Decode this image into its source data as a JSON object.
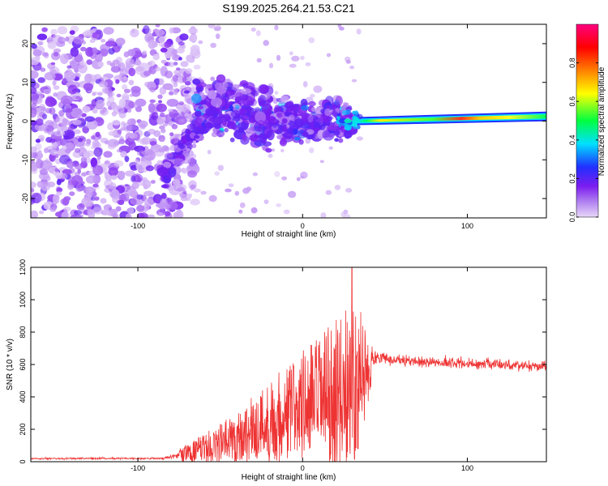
{
  "figure": {
    "title": "S199.2025.264.21.53.C21"
  },
  "chart_data": [
    {
      "type": "heatmap",
      "panel": "top",
      "title": "S199.2025.264.21.53.C21",
      "xlabel": "Height of straight line (km)",
      "ylabel": "Frequency (Hz)",
      "xlim": [
        -165,
        148
      ],
      "ylim": [
        -25,
        25
      ],
      "x_ticks": [
        -100,
        0,
        100
      ],
      "y_ticks": [
        20,
        10,
        0,
        -10,
        -20
      ],
      "colorbar": {
        "label": "Normalized spectral amplitude",
        "range": [
          0,
          1
        ],
        "ticks": [
          0.0,
          0.2,
          0.4,
          0.6,
          0.8
        ],
        "colormap": [
          "#e8d8f8",
          "#7c1cf0",
          "#2030ff",
          "#00e0ff",
          "#00ff40",
          "#ffff00",
          "#ff8000",
          "#ff0000",
          "#ff0080"
        ]
      },
      "features": [
        {
          "name": "noise_scatter",
          "x_range": [
            -165,
            -85
          ],
          "freq_range": [
            -25,
            24
          ],
          "amplitude": 0.1
        },
        {
          "name": "rising_diagonal",
          "x_from": -85,
          "freq_from": -15,
          "x_to": -55,
          "freq_to": 5,
          "amplitude": 0.12
        },
        {
          "name": "central_cluster",
          "x_range": [
            -65,
            30
          ],
          "freq_range": [
            -15,
            10
          ],
          "amplitude": 0.12
        },
        {
          "name": "constant_line",
          "x_range": [
            33,
            148
          ],
          "freq_start": 0,
          "freq_end": 1.2,
          "amplitude_peak": 0.9
        }
      ]
    },
    {
      "type": "line",
      "panel": "bottom",
      "xlabel": "Height of straight line (km)",
      "ylabel": "SNR (10 * v/v)",
      "xlim": [
        -165,
        148
      ],
      "ylim": [
        0,
        1200
      ],
      "x_ticks": [
        -100,
        0,
        100
      ],
      "y_ticks": [
        0,
        200,
        400,
        600,
        800,
        1000,
        1200
      ],
      "color": "#ee3333",
      "envelope": [
        {
          "x": -165,
          "mean": 20,
          "spread": 12
        },
        {
          "x": -85,
          "mean": 20,
          "spread": 12
        },
        {
          "x": -75,
          "mean": 40,
          "spread": 40
        },
        {
          "x": -60,
          "mean": 80,
          "spread": 90
        },
        {
          "x": -40,
          "mean": 150,
          "spread": 160
        },
        {
          "x": -20,
          "mean": 250,
          "spread": 260
        },
        {
          "x": 0,
          "mean": 350,
          "spread": 350
        },
        {
          "x": 20,
          "mean": 420,
          "spread": 450
        },
        {
          "x": 30,
          "mean": 480,
          "spread": 520
        },
        {
          "x": 40,
          "mean": 560,
          "spread": 300
        },
        {
          "x": 45,
          "mean": 640,
          "spread": 100
        },
        {
          "x": 60,
          "mean": 620,
          "spread": 70
        },
        {
          "x": 148,
          "mean": 590,
          "spread": 70
        }
      ],
      "peak": {
        "x": 30,
        "y": 1200
      }
    }
  ]
}
